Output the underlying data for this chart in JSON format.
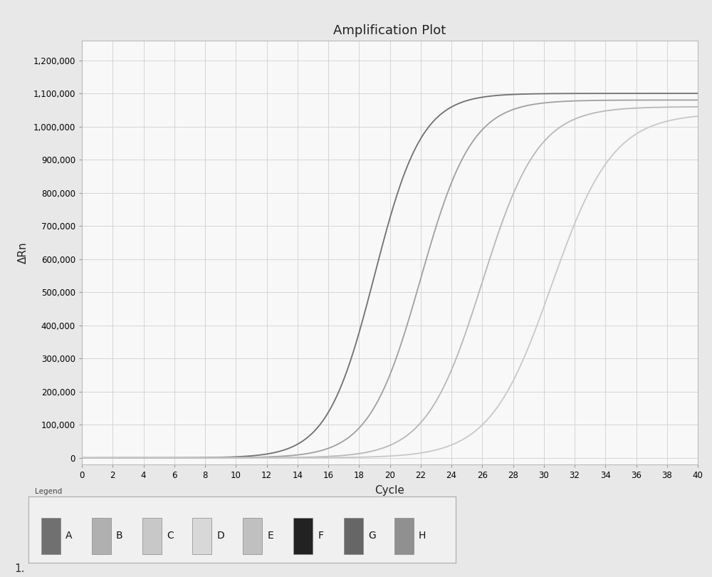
{
  "title": "Amplification Plot",
  "xlabel": "Cycle",
  "ylabel": "ΔRn",
  "xlim": [
    0,
    40
  ],
  "ylim": [
    -20000,
    1260000
  ],
  "xticks": [
    0,
    2,
    4,
    6,
    8,
    10,
    12,
    14,
    16,
    18,
    20,
    22,
    24,
    26,
    28,
    30,
    32,
    34,
    36,
    38,
    40
  ],
  "yticks": [
    0,
    100000,
    200000,
    300000,
    400000,
    500000,
    600000,
    700000,
    800000,
    900000,
    1000000,
    1100000,
    1200000
  ],
  "ytick_labels": [
    "0",
    "100,000",
    "200,000",
    "300,000",
    "400,000",
    "500,000",
    "600,000",
    "700,000",
    "800,000",
    "900,000",
    "1,000,000",
    "1,100,000",
    "1,200,000"
  ],
  "background_color": "#e8e8e8",
  "plot_bg_color": "#f8f8f8",
  "grid_color": "#d4ccd8",
  "curves": [
    {
      "label": "A",
      "color": "#707070",
      "midpoint": 19.0,
      "L": 1100000,
      "k": 0.65
    },
    {
      "label": "B",
      "color": "#a0a0a0",
      "midpoint": 22.0,
      "L": 1080000,
      "k": 0.6
    },
    {
      "label": "C",
      "color": "#b8b8b8",
      "midpoint": 26.0,
      "L": 1060000,
      "k": 0.55
    },
    {
      "label": "D",
      "color": "#c8c8c8",
      "midpoint": 30.5,
      "L": 1040000,
      "k": 0.5
    }
  ],
  "legend_items": [
    {
      "label": "A",
      "color": "#707070"
    },
    {
      "label": "B",
      "color": "#b0b0b0"
    },
    {
      "label": "C",
      "color": "#c8c8c8"
    },
    {
      "label": "D",
      "color": "#d8d8d8"
    },
    {
      "label": "E",
      "color": "#c0c0c0"
    },
    {
      "label": "F",
      "color": "#222222"
    },
    {
      "label": "G",
      "color": "#666666"
    },
    {
      "label": "H",
      "color": "#909090"
    }
  ],
  "title_fontsize": 13,
  "axis_label_fontsize": 11,
  "tick_fontsize": 8.5,
  "legend_fontsize": 10
}
